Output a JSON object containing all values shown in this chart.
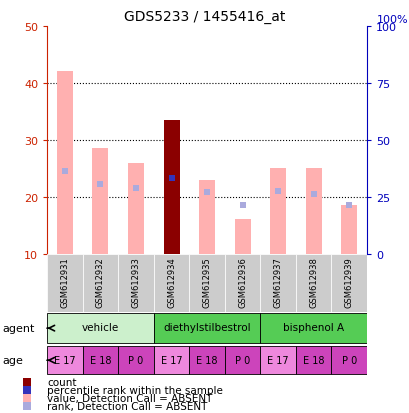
{
  "title": "GDS5233 / 1455416_at",
  "samples": [
    "GSM612931",
    "GSM612932",
    "GSM612933",
    "GSM612934",
    "GSM612935",
    "GSM612936",
    "GSM612937",
    "GSM612938",
    "GSM612939"
  ],
  "pink_bar_top": [
    42.0,
    28.5,
    26.0,
    null,
    23.0,
    16.0,
    25.0,
    null,
    null
  ],
  "dark_red_bar_top": [
    null,
    null,
    null,
    33.5,
    null,
    null,
    null,
    null,
    null
  ],
  "pink_bar2_top": [
    null,
    null,
    null,
    null,
    null,
    null,
    null,
    25.0,
    18.5
  ],
  "bar_bottom": 10,
  "blue_sq_y": [
    24.5,
    22.2,
    21.5,
    23.2,
    20.8,
    18.5,
    21.0,
    20.5,
    18.5
  ],
  "blue_sq_dark": [
    false,
    false,
    false,
    true,
    false,
    false,
    false,
    false,
    false
  ],
  "ylim_left": [
    10,
    50
  ],
  "ylim_right": [
    0,
    100
  ],
  "yticks_left": [
    10,
    20,
    30,
    40,
    50
  ],
  "yticks_right": [
    0,
    25,
    50,
    75,
    100
  ],
  "left_color": "#cc2200",
  "right_color": "#0000bb",
  "dark_red": "#8b0000",
  "pink": "#ffb0b0",
  "blue_sq_color": "#3333bb",
  "light_blue_sq": "#aaaadd",
  "vehicle_color": "#ccf0cc",
  "des_color": "#55cc55",
  "bpa_color": "#55cc55",
  "age_color": "#cc44bb",
  "age_color_light": "#ee88dd",
  "sample_box_color": "#cccccc",
  "age_labels_flat": [
    "E 17",
    "E 18",
    "P 0",
    "E 17",
    "E 18",
    "P 0",
    "E 17",
    "E 18",
    "P 0"
  ],
  "legend_items": [
    {
      "color": "#8b0000",
      "label": "count"
    },
    {
      "color": "#3333bb",
      "label": "percentile rank within the sample"
    },
    {
      "color": "#ffb0b0",
      "label": "value, Detection Call = ABSENT"
    },
    {
      "color": "#aaaadd",
      "label": "rank, Detection Call = ABSENT"
    }
  ]
}
